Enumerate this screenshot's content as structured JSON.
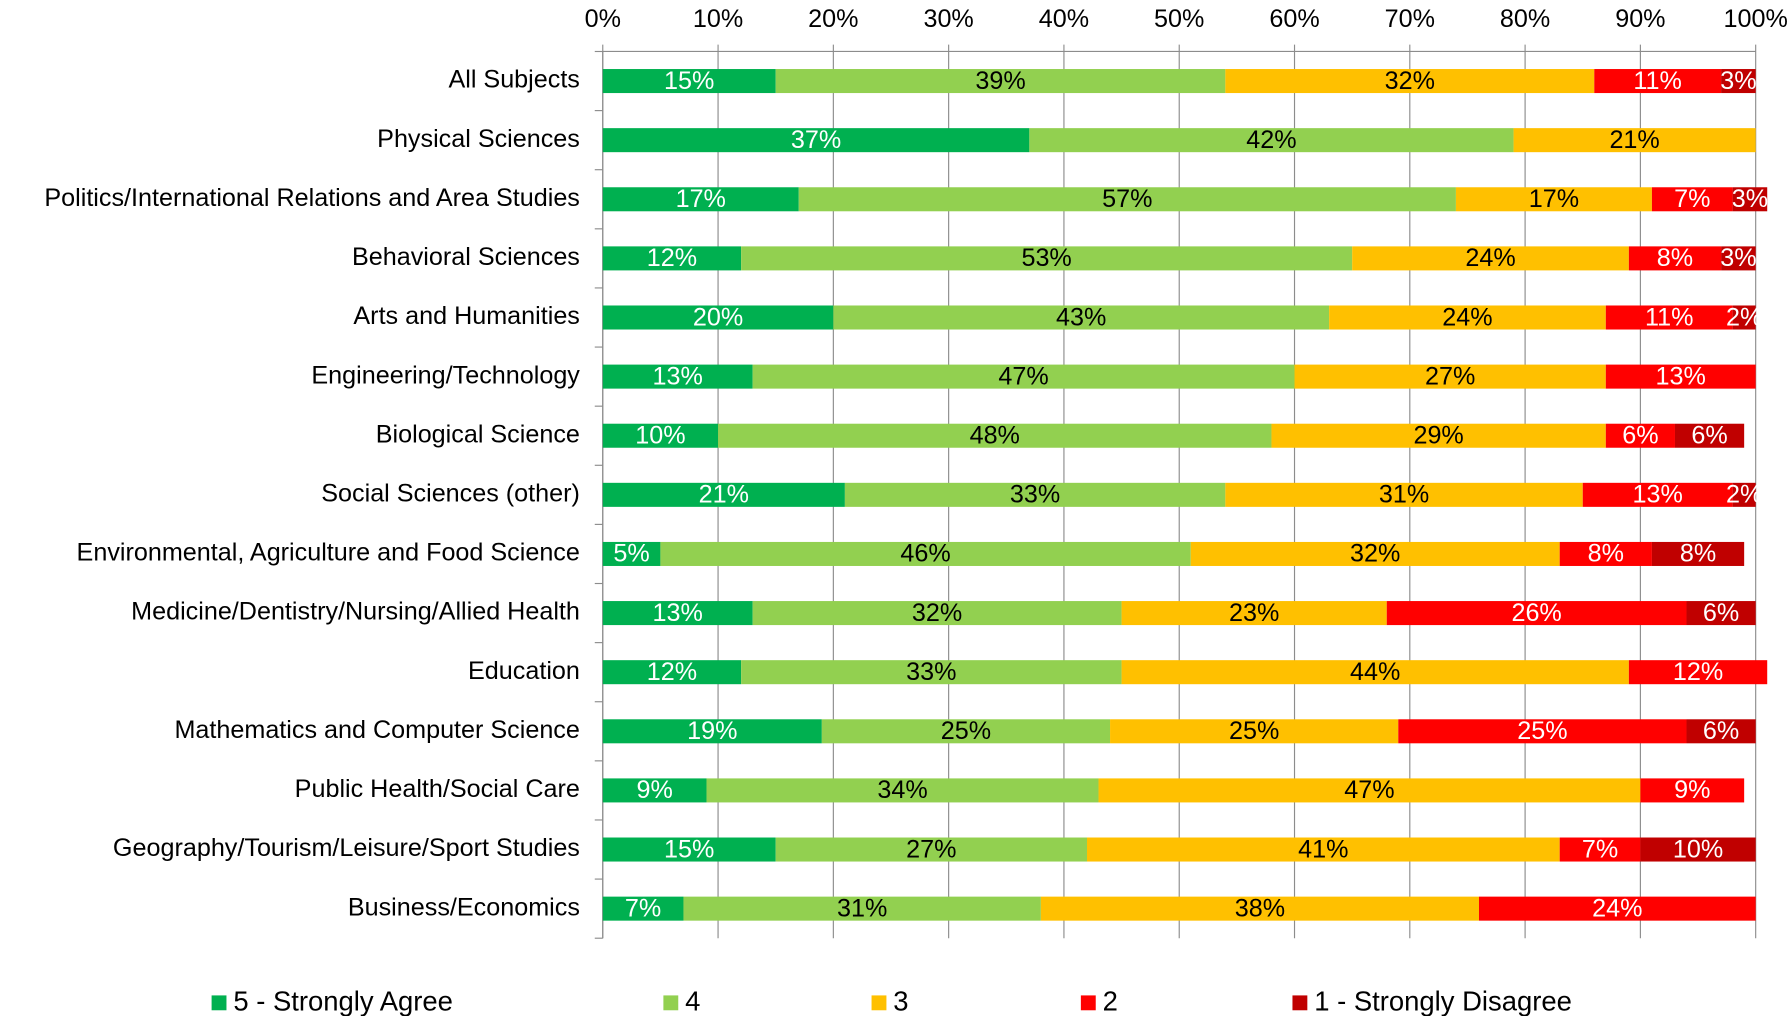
{
  "chart_data": {
    "type": "stacked-bar-horizontal",
    "categories": [
      "All Subjects",
      "Physical Sciences",
      "Politics/International Relations and Area Studies",
      "Behavioral Sciences",
      "Arts and Humanities",
      "Engineering/Technology",
      "Biological Science",
      "Social Sciences (other)",
      "Environmental, Agriculture and Food Science",
      "Medicine/Dentistry/Nursing/Allied Health",
      "Education",
      "Mathematics and Computer Science",
      "Public Health/Social Care",
      "Geography/Tourism/Leisure/Sport Studies",
      "Business/Economics"
    ],
    "series": [
      {
        "name": "5 - Strongly Agree",
        "color": "#00b050",
        "label_color": "#ffffff",
        "values": [
          15,
          37,
          17,
          12,
          20,
          13,
          10,
          21,
          5,
          13,
          12,
          19,
          9,
          15,
          7
        ],
        "value_labels": [
          "15%",
          "37%",
          "17%",
          "12%",
          "20%",
          "13%",
          "10%",
          "21%",
          "5%",
          "13%",
          "12%",
          "19%",
          "9%",
          "15%",
          "7%"
        ]
      },
      {
        "name": "4",
        "color": "#92d050",
        "label_color": "#000000",
        "values": [
          39,
          42,
          57,
          53,
          43,
          47,
          48,
          33,
          46,
          32,
          33,
          25,
          34,
          27,
          31
        ],
        "value_labels": [
          "39%",
          "42%",
          "57%",
          "53%",
          "43%",
          "47%",
          "48%",
          "33%",
          "46%",
          "32%",
          "33%",
          "25%",
          "34%",
          "27%",
          "31%"
        ]
      },
      {
        "name": "3",
        "color": "#ffc000",
        "label_color": "#000000",
        "values": [
          32,
          21,
          17,
          24,
          24,
          27,
          29,
          31,
          32,
          23,
          44,
          25,
          47,
          41,
          38
        ],
        "value_labels": [
          "32%",
          "21%",
          "17%",
          "24%",
          "24%",
          "27%",
          "29%",
          "31%",
          "32%",
          "23%",
          "44%",
          "25%",
          "47%",
          "41%",
          "38%"
        ]
      },
      {
        "name": "2",
        "color": "#ff0000",
        "label_color": "#ffffff",
        "values": [
          11,
          null,
          7,
          8,
          11,
          13,
          6,
          13,
          8,
          26,
          12,
          25,
          9,
          7,
          24
        ],
        "value_labels": [
          "11%",
          null,
          "7%",
          "8%",
          "11%",
          "13%",
          "6%",
          "13%",
          "8%",
          "26%",
          "12%",
          "25%",
          "9%",
          "7%",
          "24%"
        ]
      },
      {
        "name": "1 - Strongly Disagree",
        "color": "#c00000",
        "label_color": "#ffffff",
        "values": [
          3,
          null,
          3,
          3,
          2,
          null,
          6,
          2,
          8,
          6,
          null,
          6,
          null,
          10,
          null
        ],
        "value_labels": [
          "3%",
          null,
          "3%",
          "3%",
          "2%",
          null,
          "6%",
          "2%",
          "8%",
          "6%",
          null,
          "6%",
          null,
          "10%",
          null
        ]
      }
    ],
    "xlim": [
      0,
      100
    ],
    "xticks": [
      {
        "value": 0,
        "label": "0%"
      },
      {
        "value": 10,
        "label": "10%"
      },
      {
        "value": 20,
        "label": "20%"
      },
      {
        "value": 30,
        "label": "30%"
      },
      {
        "value": 40,
        "label": "40%"
      },
      {
        "value": 50,
        "label": "50%"
      },
      {
        "value": 60,
        "label": "60%"
      },
      {
        "value": 70,
        "label": "70%"
      },
      {
        "value": 80,
        "label": "80%"
      },
      {
        "value": 90,
        "label": "90%"
      },
      {
        "value": 100,
        "label": "100%"
      }
    ],
    "grid": true,
    "legend": "bottom"
  }
}
